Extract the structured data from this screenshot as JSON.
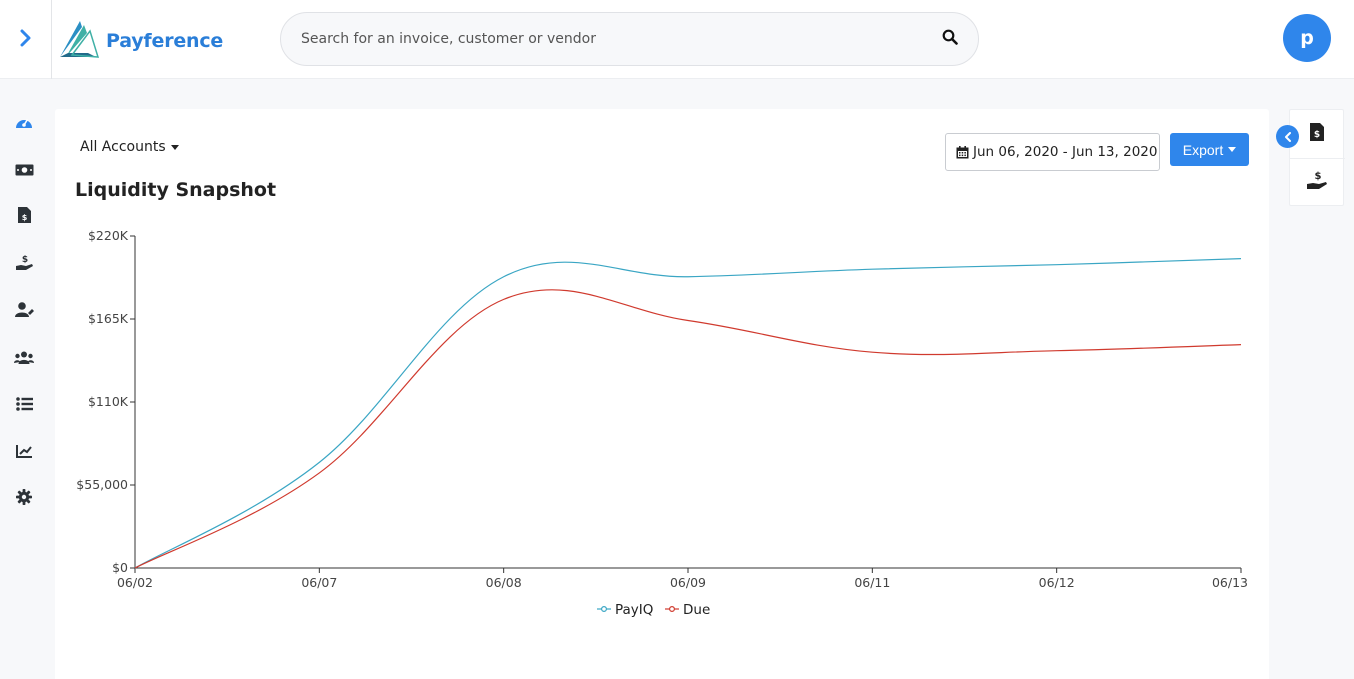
{
  "app": {
    "name": "Payference"
  },
  "search": {
    "placeholder": "Search for an invoice, customer or vendor"
  },
  "user": {
    "initial": "p"
  },
  "sidebar": {
    "items": [
      {
        "icon": "dashboard-icon",
        "active": true
      },
      {
        "icon": "money-icon"
      },
      {
        "icon": "invoice-icon"
      },
      {
        "icon": "hand-dollar-icon"
      },
      {
        "icon": "user-edit-icon"
      },
      {
        "icon": "users-icon"
      },
      {
        "icon": "list-icon"
      },
      {
        "icon": "chart-line-icon"
      },
      {
        "icon": "gear-icon"
      }
    ]
  },
  "toolbar": {
    "accounts_label": "All Accounts",
    "date_range": "Jun 06, 2020 - Jun 13, 2020",
    "export_label": "Export"
  },
  "colors": {
    "accent": "#2f86eb",
    "payiq": "#3aa6c4",
    "due": "#d03a2e"
  },
  "chart_data": {
    "type": "line",
    "title": "Liquidity Snapshot",
    "x": [
      "06/02",
      "06/07",
      "06/08",
      "06/09",
      "06/11",
      "06/12",
      "06/13"
    ],
    "ytick_labels": [
      "$0",
      "$55,000",
      "$110K",
      "$165K",
      "$220K"
    ],
    "yticks": [
      0,
      55000,
      110000,
      165000,
      220000
    ],
    "ylim": [
      0,
      220000
    ],
    "series": [
      {
        "name": "PayIQ",
        "values": [
          0,
          70000,
          193000,
          193000,
          198000,
          201000,
          205000
        ]
      },
      {
        "name": "Due",
        "values": [
          0,
          63000,
          178000,
          164000,
          143000,
          144000,
          148000
        ]
      }
    ],
    "legend": "bottom-center"
  }
}
